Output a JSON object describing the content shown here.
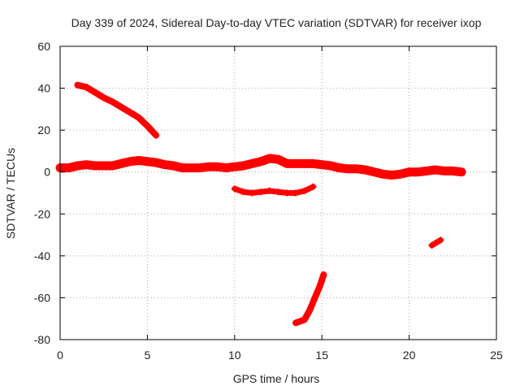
{
  "chart_data": {
    "type": "line",
    "title": "Day 339 of 2024, Sidereal Day-to-day VTEC variation (SDTVAR) for receiver ixop",
    "xlabel": "GPS time / hours",
    "ylabel": "SDTVAR / TECUs",
    "xlim": [
      0,
      25
    ],
    "ylim": [
      -80,
      60
    ],
    "xticks": [
      0,
      5,
      10,
      15,
      20,
      25
    ],
    "yticks": [
      -80,
      -60,
      -40,
      -20,
      0,
      20,
      40,
      60
    ],
    "xtick_labels": [
      "0",
      "5",
      "10",
      "15",
      "20",
      "25"
    ],
    "ytick_labels": [
      "-80",
      "-60",
      "-40",
      "-20",
      "0",
      "20",
      "40",
      "60"
    ],
    "grid": true,
    "color": "#ff0000",
    "series": [
      {
        "name": "main-band",
        "x": [
          0,
          0.5,
          1,
          1.5,
          2,
          2.5,
          3,
          3.5,
          4,
          4.5,
          5,
          5.5,
          6,
          6.5,
          7,
          7.5,
          8,
          8.5,
          9,
          9.5,
          10,
          10.5,
          11,
          11.5,
          12,
          12.5,
          13,
          13.5,
          14,
          14.5,
          15,
          15.5,
          16,
          16.5,
          17,
          17.5,
          18,
          18.5,
          19,
          19.5,
          20,
          20.5,
          21,
          21.5,
          22,
          22.5,
          23
        ],
        "y": [
          2,
          2,
          3,
          3.5,
          3,
          3,
          3,
          4,
          5,
          5.5,
          5,
          4.5,
          3.5,
          3,
          2,
          2,
          2,
          2.5,
          2.5,
          2,
          2.5,
          3,
          4,
          5,
          6.5,
          6,
          4,
          4,
          4,
          4,
          3.5,
          3,
          2,
          1.5,
          1.5,
          1,
          0,
          -1,
          -1.5,
          -1,
          0,
          0,
          0.5,
          1,
          0.5,
          0.5,
          0
        ]
      },
      {
        "name": "descending-arc-early",
        "x": [
          1,
          1.5,
          2,
          2.5,
          3,
          3.5,
          4,
          4.5,
          5,
          5.5
        ],
        "y": [
          41.5,
          40.5,
          38,
          35.5,
          33.5,
          31,
          28.5,
          26,
          22,
          17.5
        ]
      },
      {
        "name": "midday-dip",
        "x": [
          10,
          10.5,
          11,
          11.5,
          12,
          12.5,
          13,
          13.5,
          14,
          14.5
        ],
        "y": [
          -8,
          -9.5,
          -10,
          -9.5,
          -9,
          -9.5,
          -10,
          -10,
          -9,
          -7
        ]
      },
      {
        "name": "deep-dip",
        "x": [
          13.5,
          14,
          14.3,
          14.6,
          14.9,
          15.1
        ],
        "y": [
          -72,
          -70.5,
          -66,
          -60,
          -54,
          -49
        ]
      },
      {
        "name": "late-fragment",
        "x": [
          21.3,
          21.5,
          21.8
        ],
        "y": [
          -35,
          -34,
          -32.5
        ]
      }
    ]
  }
}
